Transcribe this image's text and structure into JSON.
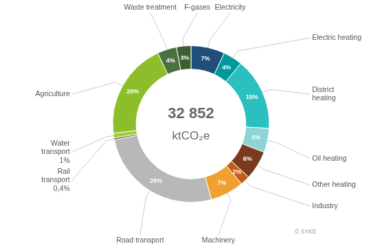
{
  "chart_data": {
    "type": "doughnut",
    "title": "32 852",
    "subtitle": "ktCO₂e",
    "categories": [
      "Electricity",
      "Electric heating",
      "District\nheating",
      "Oil heating",
      "Other heating",
      "Industry",
      "Machinery",
      "Road transport",
      "Rail\ntransport\n0,4%",
      "Water\ntransport\n1%",
      "Agriculture",
      "Waste treatment",
      "F-gases"
    ],
    "values": [
      7,
      4,
      15,
      5,
      6,
      2,
      7,
      26,
      0.4,
      1,
      20,
      4,
      3
    ],
    "colors": [
      "#1f4e79",
      "#009999",
      "#2bbfbf",
      "#8dd4d4",
      "#7b3a1e",
      "#c45c1a",
      "#f0a030",
      "#b8b8b8",
      "#606060",
      "#a8c830",
      "#8cbd2a",
      "#4a7040",
      "#3a5f30"
    ],
    "data_labels": true,
    "value_labels": [
      "7%",
      "4%",
      "15%",
      "5%",
      "6%",
      "2%",
      "7%",
      "26%",
      null,
      null,
      "20%",
      "4%",
      "3%"
    ],
    "annotations": [
      "© SYKE"
    ],
    "legend": false
  }
}
